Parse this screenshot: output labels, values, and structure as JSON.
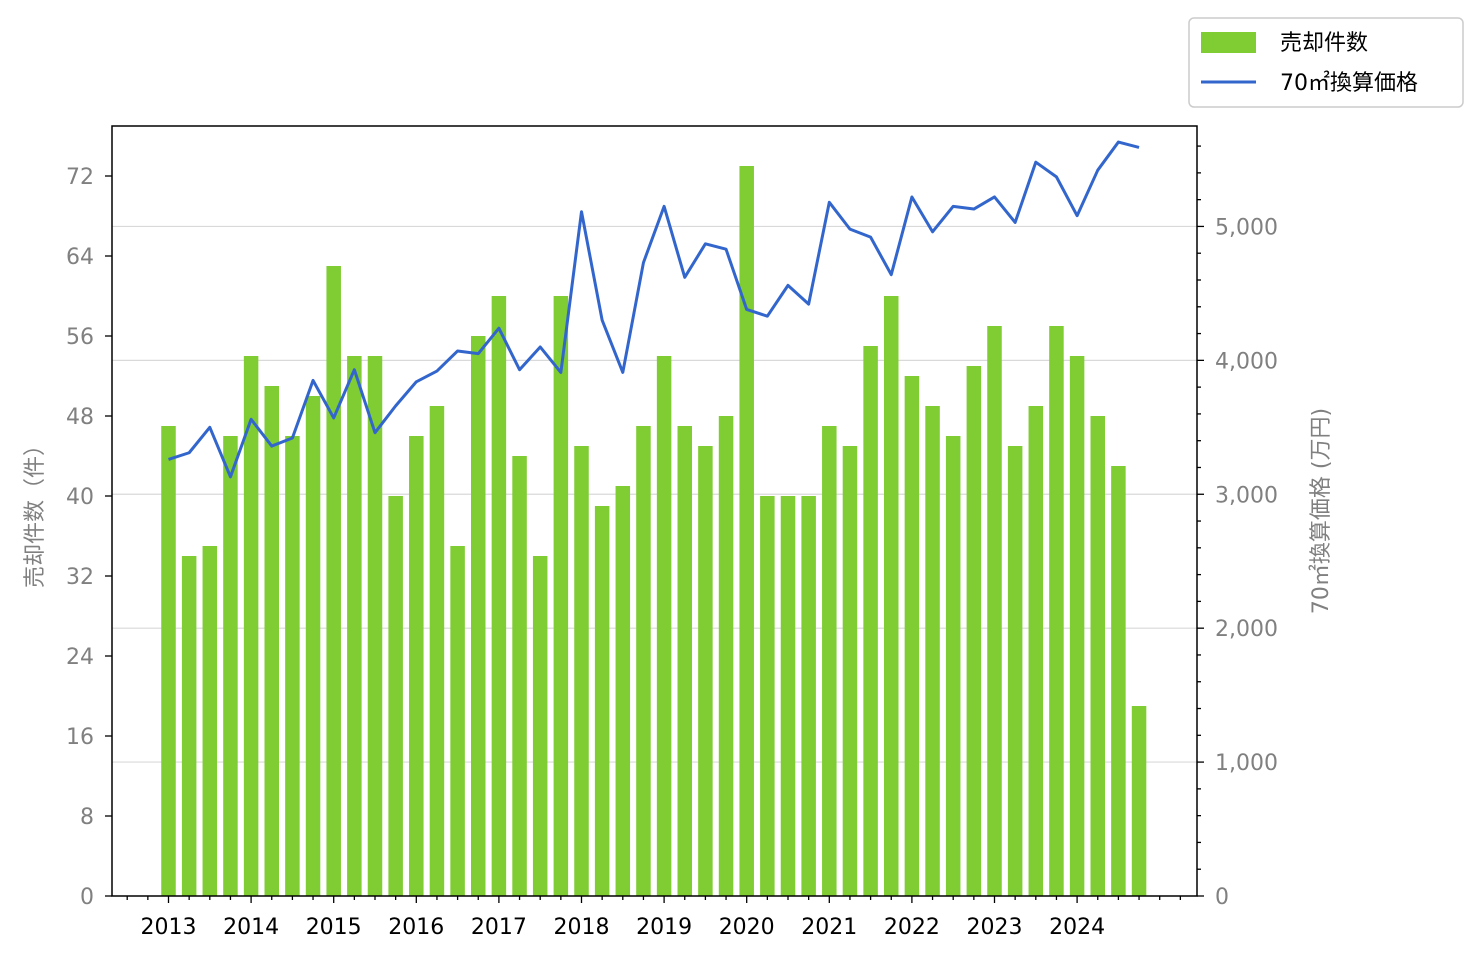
{
  "chart_data": {
    "type": "bar",
    "x_start_year": 2013,
    "periods_per_year": 4,
    "xtick_labels": [
      "2013",
      "2014",
      "2015",
      "2016",
      "2017",
      "2018",
      "2019",
      "2020",
      "2021",
      "2022",
      "2023",
      "2024"
    ],
    "series": [
      {
        "name": "売却件数",
        "type": "bar",
        "axis": "left",
        "color": "#7fcc33",
        "values": [
          47,
          34,
          35,
          46,
          54,
          51,
          46,
          50,
          63,
          54,
          54,
          40,
          46,
          49,
          35,
          56,
          60,
          44,
          34,
          60,
          45,
          39,
          41,
          47,
          54,
          47,
          45,
          48,
          73,
          40,
          40,
          40,
          47,
          45,
          55,
          60,
          52,
          49,
          46,
          53,
          57,
          45,
          49,
          57,
          54,
          48,
          43,
          19
        ]
      },
      {
        "name": "70㎡換算価格",
        "type": "line",
        "axis": "right",
        "color": "#3366cc",
        "values": [
          3260,
          3310,
          3500,
          3130,
          3560,
          3360,
          3420,
          3850,
          3570,
          3930,
          3460,
          3660,
          3840,
          3920,
          4070,
          4050,
          4240,
          3930,
          4100,
          3910,
          5110,
          4300,
          3910,
          4730,
          5150,
          4620,
          4870,
          4830,
          4380,
          4330,
          4560,
          4420,
          5180,
          4980,
          4920,
          4640,
          5220,
          4960,
          5150,
          5130,
          5220,
          5030,
          5480,
          5370,
          5080,
          5420,
          5630,
          5590
        ]
      }
    ],
    "ylabel_left": "売却件数（件）",
    "ylabel_right": "70㎡換算価格 (万円)",
    "ylim_left": [
      0,
      77
    ],
    "yticks_left": [
      "0",
      "8",
      "16",
      "24",
      "32",
      "40",
      "48",
      "56",
      "64",
      "72"
    ],
    "ylim_right": [
      0,
      5750
    ],
    "yticks_right": [
      "0",
      "1,000",
      "2,000",
      "3,000",
      "4,000",
      "5,000"
    ],
    "grid": "horizontal",
    "legend_placement": "top-right"
  }
}
